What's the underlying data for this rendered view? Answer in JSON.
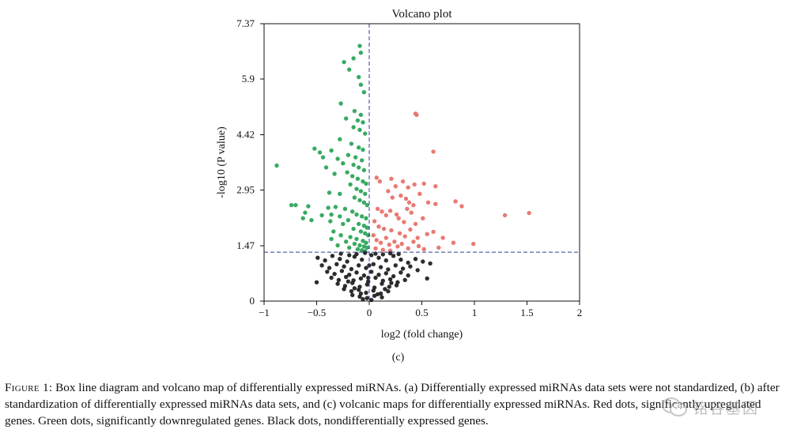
{
  "chart_data": {
    "type": "scatter",
    "title": "Volcano plot",
    "xlabel": "log2 (fold change)",
    "ylabel": "-log10 (P value)",
    "xlim": [
      -1,
      2
    ],
    "ylim": [
      0,
      7.37
    ],
    "xticks": [
      -1,
      -0.5,
      0,
      0.5,
      1,
      1.5,
      2
    ],
    "xtick_labels": [
      "−1",
      "−0.5",
      "0",
      "0.5",
      "1",
      "1.5",
      "2"
    ],
    "yticks": [
      0,
      1.47,
      2.95,
      4.42,
      5.9,
      7.37
    ],
    "ytick_labels": [
      "0",
      "1.47",
      "2.95",
      "4.42",
      "5.9",
      "7.37"
    ],
    "threshold_lines": {
      "y": 1.3,
      "x": 0
    },
    "panel_label": "(c)",
    "colors": {
      "up": "#e8736a",
      "down": "#2ea55a",
      "none": "#222222",
      "guide": "#2b3f8f",
      "axis": "#111111"
    },
    "series": [
      {
        "name": "Upregulated",
        "color": "#e8736a",
        "points": [
          [
            0.44,
            4.98
          ],
          [
            0.45,
            4.95
          ],
          [
            0.61,
            3.97
          ],
          [
            0.07,
            3.28
          ],
          [
            0.1,
            3.18
          ],
          [
            0.21,
            3.25
          ],
          [
            0.25,
            3.05
          ],
          [
            0.32,
            3.18
          ],
          [
            0.37,
            3.02
          ],
          [
            0.43,
            3.1
          ],
          [
            0.52,
            3.12
          ],
          [
            0.63,
            3.05
          ],
          [
            0.18,
            2.92
          ],
          [
            0.22,
            2.75
          ],
          [
            0.3,
            2.8
          ],
          [
            0.35,
            2.72
          ],
          [
            0.38,
            2.62
          ],
          [
            0.48,
            2.85
          ],
          [
            0.56,
            2.62
          ],
          [
            0.63,
            2.58
          ],
          [
            0.82,
            2.65
          ],
          [
            0.88,
            2.52
          ],
          [
            1.29,
            2.28
          ],
          [
            1.52,
            2.34
          ],
          [
            0.08,
            2.45
          ],
          [
            0.12,
            2.38
          ],
          [
            0.16,
            2.28
          ],
          [
            0.2,
            2.4
          ],
          [
            0.26,
            2.3
          ],
          [
            0.28,
            2.2
          ],
          [
            0.33,
            2.1
          ],
          [
            0.4,
            2.35
          ],
          [
            0.44,
            2.05
          ],
          [
            0.51,
            2.2
          ],
          [
            0.36,
            2.45
          ],
          [
            0.42,
            2.55
          ],
          [
            0.05,
            2.12
          ],
          [
            0.09,
            1.98
          ],
          [
            0.14,
            1.92
          ],
          [
            0.21,
            1.88
          ],
          [
            0.29,
            1.8
          ],
          [
            0.34,
            1.72
          ],
          [
            0.39,
            1.9
          ],
          [
            0.46,
            1.68
          ],
          [
            0.55,
            1.78
          ],
          [
            0.61,
            1.84
          ],
          [
            0.7,
            1.68
          ],
          [
            0.8,
            1.55
          ],
          [
            0.99,
            1.52
          ],
          [
            0.04,
            1.75
          ],
          [
            0.07,
            1.62
          ],
          [
            0.11,
            1.55
          ],
          [
            0.16,
            1.68
          ],
          [
            0.19,
            1.5
          ],
          [
            0.24,
            1.58
          ],
          [
            0.27,
            1.45
          ],
          [
            0.31,
            1.52
          ],
          [
            0.37,
            1.4
          ],
          [
            0.42,
            1.58
          ],
          [
            0.47,
            1.46
          ],
          [
            0.52,
            1.38
          ],
          [
            0.66,
            1.42
          ],
          [
            0.06,
            1.4
          ],
          [
            0.13,
            1.36
          ],
          [
            0.2,
            1.34
          ]
        ]
      },
      {
        "name": "Downregulated",
        "color": "#2ea55a",
        "points": [
          [
            -0.09,
            6.78
          ],
          [
            -0.08,
            6.6
          ],
          [
            -0.15,
            6.45
          ],
          [
            -0.24,
            6.35
          ],
          [
            -0.19,
            6.15
          ],
          [
            -0.1,
            5.95
          ],
          [
            -0.08,
            5.75
          ],
          [
            -0.05,
            5.55
          ],
          [
            -0.27,
            5.25
          ],
          [
            -0.14,
            5.05
          ],
          [
            -0.08,
            4.95
          ],
          [
            -0.22,
            4.85
          ],
          [
            -0.11,
            4.8
          ],
          [
            -0.06,
            4.75
          ],
          [
            -0.15,
            4.62
          ],
          [
            -0.09,
            4.55
          ],
          [
            -0.04,
            4.45
          ],
          [
            -0.28,
            4.3
          ],
          [
            -0.17,
            4.18
          ],
          [
            -0.1,
            4.08
          ],
          [
            -0.06,
            4.02
          ],
          [
            -0.52,
            4.05
          ],
          [
            -0.47,
            3.95
          ],
          [
            -0.36,
            4.0
          ],
          [
            -0.3,
            3.78
          ],
          [
            -0.2,
            3.88
          ],
          [
            -0.13,
            3.82
          ],
          [
            -0.07,
            3.74
          ],
          [
            -0.44,
            3.82
          ],
          [
            -0.25,
            3.66
          ],
          [
            -0.15,
            3.62
          ],
          [
            -0.1,
            3.55
          ],
          [
            -0.05,
            3.48
          ],
          [
            -0.88,
            3.6
          ],
          [
            -0.41,
            3.55
          ],
          [
            -0.33,
            3.38
          ],
          [
            -0.21,
            3.42
          ],
          [
            -0.16,
            3.32
          ],
          [
            -0.11,
            3.25
          ],
          [
            -0.06,
            3.18
          ],
          [
            -0.03,
            3.12
          ],
          [
            -0.18,
            3.1
          ],
          [
            -0.12,
            2.98
          ],
          [
            -0.08,
            2.92
          ],
          [
            -0.04,
            2.85
          ],
          [
            -0.38,
            2.88
          ],
          [
            -0.28,
            2.85
          ],
          [
            -0.14,
            2.75
          ],
          [
            -0.09,
            2.68
          ],
          [
            -0.05,
            2.62
          ],
          [
            -0.02,
            2.55
          ],
          [
            -0.74,
            2.55
          ],
          [
            -0.7,
            2.55
          ],
          [
            -0.58,
            2.52
          ],
          [
            -0.39,
            2.48
          ],
          [
            -0.32,
            2.5
          ],
          [
            -0.23,
            2.45
          ],
          [
            -0.16,
            2.38
          ],
          [
            -0.12,
            2.3
          ],
          [
            -0.07,
            2.25
          ],
          [
            -0.03,
            2.2
          ],
          [
            -0.61,
            2.35
          ],
          [
            -0.45,
            2.28
          ],
          [
            -0.36,
            2.3
          ],
          [
            -0.28,
            2.25
          ],
          [
            -0.2,
            2.15
          ],
          [
            -0.1,
            2.05
          ],
          [
            -0.05,
            2.0
          ],
          [
            -0.02,
            1.95
          ],
          [
            -0.63,
            2.2
          ],
          [
            -0.55,
            2.15
          ],
          [
            -0.37,
            2.12
          ],
          [
            -0.25,
            2.05
          ],
          [
            -0.15,
            1.92
          ],
          [
            -0.08,
            1.85
          ],
          [
            -0.04,
            1.8
          ],
          [
            -0.01,
            1.75
          ],
          [
            -0.34,
            1.85
          ],
          [
            -0.27,
            1.75
          ],
          [
            -0.18,
            1.7
          ],
          [
            -0.12,
            1.65
          ],
          [
            -0.06,
            1.6
          ],
          [
            -0.03,
            1.55
          ],
          [
            -0.36,
            1.65
          ],
          [
            -0.22,
            1.58
          ],
          [
            -0.14,
            1.52
          ],
          [
            -0.09,
            1.48
          ],
          [
            -0.05,
            1.45
          ],
          [
            -0.02,
            1.42
          ],
          [
            -0.3,
            1.48
          ],
          [
            -0.19,
            1.42
          ],
          [
            -0.11,
            1.38
          ],
          [
            -0.07,
            1.35
          ],
          [
            -0.04,
            1.32
          ]
        ]
      },
      {
        "name": "Not significant",
        "color": "#222222",
        "points": [
          [
            -0.49,
            1.15
          ],
          [
            -0.42,
            1.08
          ],
          [
            -0.35,
            1.2
          ],
          [
            -0.28,
            1.12
          ],
          [
            -0.21,
            1.05
          ],
          [
            -0.14,
            1.18
          ],
          [
            -0.07,
            1.1
          ],
          [
            0.02,
            1.22
          ],
          [
            0.09,
            1.15
          ],
          [
            0.16,
            1.08
          ],
          [
            0.23,
            1.2
          ],
          [
            0.3,
            1.1
          ],
          [
            0.37,
            1.02
          ],
          [
            0.44,
            1.12
          ],
          [
            0.51,
            1.05
          ],
          [
            0.58,
            1.0
          ],
          [
            -0.45,
            0.95
          ],
          [
            -0.38,
            0.88
          ],
          [
            -0.31,
            0.98
          ],
          [
            -0.24,
            0.92
          ],
          [
            -0.17,
            0.85
          ],
          [
            -0.1,
            0.95
          ],
          [
            -0.03,
            0.88
          ],
          [
            0.04,
            0.98
          ],
          [
            0.11,
            0.9
          ],
          [
            0.18,
            0.84
          ],
          [
            0.25,
            0.95
          ],
          [
            0.32,
            0.86
          ],
          [
            0.39,
            0.92
          ],
          [
            0.46,
            0.82
          ],
          [
            -0.4,
            0.78
          ],
          [
            -0.33,
            0.72
          ],
          [
            -0.26,
            0.8
          ],
          [
            -0.19,
            0.7
          ],
          [
            -0.12,
            0.76
          ],
          [
            -0.05,
            0.68
          ],
          [
            0.02,
            0.78
          ],
          [
            0.09,
            0.7
          ],
          [
            0.16,
            0.74
          ],
          [
            0.23,
            0.66
          ],
          [
            0.3,
            0.76
          ],
          [
            0.37,
            0.68
          ],
          [
            -0.36,
            0.62
          ],
          [
            -0.29,
            0.56
          ],
          [
            -0.22,
            0.64
          ],
          [
            -0.15,
            0.55
          ],
          [
            -0.08,
            0.6
          ],
          [
            -0.01,
            0.52
          ],
          [
            0.06,
            0.62
          ],
          [
            0.13,
            0.54
          ],
          [
            0.2,
            0.58
          ],
          [
            0.27,
            0.5
          ],
          [
            0.34,
            0.56
          ],
          [
            -0.3,
            0.46
          ],
          [
            -0.23,
            0.4
          ],
          [
            -0.16,
            0.48
          ],
          [
            -0.09,
            0.38
          ],
          [
            -0.02,
            0.44
          ],
          [
            0.05,
            0.36
          ],
          [
            0.12,
            0.46
          ],
          [
            0.19,
            0.38
          ],
          [
            0.26,
            0.42
          ],
          [
            -0.24,
            0.32
          ],
          [
            -0.17,
            0.26
          ],
          [
            -0.1,
            0.3
          ],
          [
            -0.03,
            0.22
          ],
          [
            0.04,
            0.28
          ],
          [
            0.11,
            0.2
          ],
          [
            0.18,
            0.26
          ],
          [
            -0.16,
            0.16
          ],
          [
            -0.09,
            0.12
          ],
          [
            -0.02,
            0.08
          ],
          [
            0.05,
            0.14
          ],
          [
            0.12,
            0.1
          ],
          [
            -0.06,
            0.05
          ],
          [
            0.02,
            0.03
          ],
          [
            -0.12,
            1.25
          ],
          [
            -0.04,
            1.28
          ],
          [
            0.06,
            1.26
          ],
          [
            0.13,
            1.24
          ],
          [
            -0.19,
            1.22
          ],
          [
            0.2,
            1.27
          ],
          [
            -0.27,
            1.26
          ],
          [
            0.28,
            1.25
          ],
          [
            -0.08,
            0.2
          ],
          [
            0.08,
            0.18
          ],
          [
            -0.14,
            0.34
          ],
          [
            0.15,
            0.32
          ],
          [
            -0.2,
            0.52
          ],
          [
            0.21,
            0.48
          ],
          [
            -0.01,
            0.62
          ],
          [
            0.0,
            0.95
          ],
          [
            -0.5,
            0.5
          ],
          [
            0.55,
            0.6
          ]
        ]
      }
    ]
  },
  "caption": {
    "label": "Figure 1:",
    "text": "Box line diagram and volcano map of differentially expressed miRNAs. (a) Differentially expressed miRNAs data sets were not standardized, (b) after standardization of differentially expressed miRNAs data sets, and (c) volcanic maps for differentially expressed miRNAs. Red dots, significantly upregulated genes. Green dots, significantly downregulated genes. Black dots, nondifferentially expressed genes."
  },
  "watermark": {
    "text": "铭谷基因",
    "icon": "wechat-icon"
  }
}
